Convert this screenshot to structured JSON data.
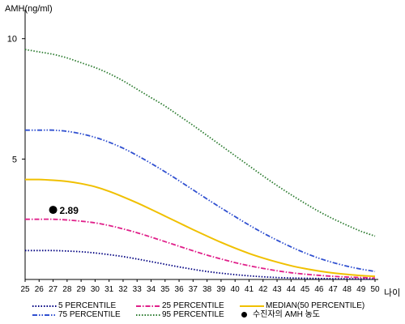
{
  "chart_data": {
    "type": "line",
    "title": "",
    "ylabel": "AMH(ng/ml)",
    "xlabel": "나이",
    "ylim": [
      0,
      11
    ],
    "xlim": [
      25,
      50
    ],
    "yticks": [
      5,
      10
    ],
    "x": [
      25,
      26,
      27,
      28,
      29,
      30,
      31,
      32,
      33,
      34,
      35,
      36,
      37,
      38,
      39,
      40,
      41,
      42,
      43,
      44,
      45,
      46,
      47,
      48,
      49,
      50
    ],
    "series": [
      {
        "name": "5 PERCENTILE",
        "color": "#000080",
        "dash": "dotted",
        "values": [
          1.2,
          1.2,
          1.2,
          1.18,
          1.15,
          1.1,
          1.03,
          0.95,
          0.85,
          0.74,
          0.63,
          0.52,
          0.42,
          0.33,
          0.26,
          0.2,
          0.15,
          0.11,
          0.08,
          0.06,
          0.05,
          0.04,
          0.03,
          0.03,
          0.02,
          0.02
        ]
      },
      {
        "name": "25 PERCENTILE",
        "color": "#e0208a",
        "dash": "dashdot",
        "values": [
          2.5,
          2.5,
          2.5,
          2.47,
          2.42,
          2.35,
          2.24,
          2.1,
          1.94,
          1.76,
          1.57,
          1.38,
          1.19,
          1.01,
          0.85,
          0.7,
          0.57,
          0.46,
          0.36,
          0.28,
          0.22,
          0.17,
          0.13,
          0.1,
          0.08,
          0.06
        ]
      },
      {
        "name": "MEDIAN(50 PERCENTILE)",
        "color": "#f0c000",
        "dash": "solid",
        "values": [
          4.15,
          4.15,
          4.12,
          4.07,
          3.98,
          3.85,
          3.66,
          3.43,
          3.18,
          2.91,
          2.63,
          2.35,
          2.07,
          1.8,
          1.54,
          1.3,
          1.08,
          0.89,
          0.72,
          0.57,
          0.45,
          0.35,
          0.27,
          0.21,
          0.16,
          0.13
        ]
      },
      {
        "name": "75 PERCENTILE",
        "color": "#3050d0",
        "dash": "dashdotdot",
        "values": [
          6.2,
          6.2,
          6.2,
          6.15,
          6.05,
          5.9,
          5.7,
          5.45,
          5.15,
          4.82,
          4.47,
          4.1,
          3.72,
          3.34,
          2.97,
          2.61,
          2.26,
          1.93,
          1.63,
          1.35,
          1.1,
          0.88,
          0.7,
          0.55,
          0.43,
          0.33
        ]
      },
      {
        "name": "95 PERCENTILE",
        "color": "#2e7d32",
        "dash": "dotted",
        "values": [
          9.55,
          9.45,
          9.35,
          9.2,
          9.0,
          8.8,
          8.55,
          8.25,
          7.9,
          7.55,
          7.2,
          6.8,
          6.4,
          5.98,
          5.56,
          5.14,
          4.72,
          4.3,
          3.9,
          3.52,
          3.16,
          2.82,
          2.52,
          2.25,
          2.0,
          1.8
        ]
      }
    ],
    "marker": {
      "name": "수진자의 AMH 농도",
      "x": 27,
      "y": 2.89,
      "label": "2.89",
      "color": "#000000"
    },
    "grid": false,
    "legend_position": "bottom"
  }
}
